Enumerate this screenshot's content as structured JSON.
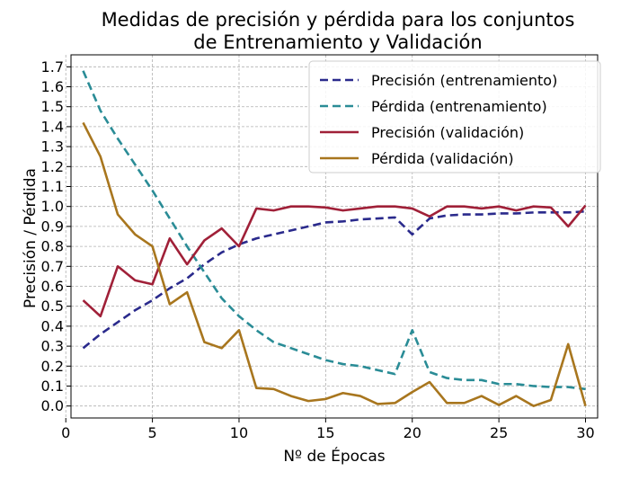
{
  "chart_data": {
    "type": "line",
    "title_lines": [
      "Medidas de precisión y pérdida para los conjuntos",
      "de Entrenamiento y Validación"
    ],
    "xlabel": "Nº de Épocas",
    "ylabel": "Precisión / Pérdida",
    "xlim": [
      0.3,
      30.7
    ],
    "ylim": [
      -0.06,
      1.76
    ],
    "xticks": [
      0,
      5,
      10,
      15,
      20,
      25,
      30
    ],
    "yticks": [
      0.0,
      0.1,
      0.2,
      0.3,
      0.4,
      0.5,
      0.6,
      0.7,
      0.8,
      0.9,
      1.0,
      1.1,
      1.2,
      1.3,
      1.4,
      1.5,
      1.6,
      1.7
    ],
    "grid": true,
    "legend_position": "top-right",
    "x": [
      1,
      2,
      3,
      4,
      5,
      6,
      7,
      8,
      9,
      10,
      11,
      12,
      13,
      14,
      15,
      16,
      17,
      18,
      19,
      20,
      21,
      22,
      23,
      24,
      25,
      26,
      27,
      28,
      29,
      30
    ],
    "series": [
      {
        "name": "Precisión (entrenamiento)",
        "color": "#2a2a8c",
        "style": "dashed",
        "values": [
          0.29,
          0.36,
          0.42,
          0.48,
          0.53,
          0.59,
          0.64,
          0.71,
          0.77,
          0.81,
          0.84,
          0.86,
          0.88,
          0.9,
          0.92,
          0.925,
          0.935,
          0.94,
          0.945,
          0.86,
          0.94,
          0.955,
          0.96,
          0.96,
          0.965,
          0.965,
          0.97,
          0.97,
          0.97,
          0.975
        ]
      },
      {
        "name": "Pérdida (entrenamiento)",
        "color": "#2a8c96",
        "style": "dashed",
        "values": [
          1.68,
          1.48,
          1.34,
          1.21,
          1.08,
          0.94,
          0.8,
          0.67,
          0.54,
          0.45,
          0.38,
          0.32,
          0.29,
          0.26,
          0.23,
          0.21,
          0.2,
          0.18,
          0.16,
          0.38,
          0.17,
          0.14,
          0.13,
          0.13,
          0.11,
          0.11,
          0.1,
          0.095,
          0.095,
          0.085
        ]
      },
      {
        "name": "Precisión (validación)",
        "color": "#a02038",
        "style": "solid",
        "values": [
          0.53,
          0.45,
          0.7,
          0.63,
          0.61,
          0.84,
          0.71,
          0.83,
          0.89,
          0.8,
          0.99,
          0.98,
          1.0,
          1.0,
          0.995,
          0.98,
          0.99,
          1.0,
          1.0,
          0.99,
          0.95,
          1.0,
          1.0,
          0.99,
          1.0,
          0.98,
          1.0,
          0.995,
          0.9,
          1.005
        ]
      },
      {
        "name": "Pérdida (validación)",
        "color": "#a8761e",
        "style": "solid",
        "values": [
          1.42,
          1.25,
          0.96,
          0.86,
          0.8,
          0.51,
          0.57,
          0.32,
          0.29,
          0.38,
          0.09,
          0.085,
          0.05,
          0.025,
          0.035,
          0.065,
          0.05,
          0.01,
          0.015,
          0.07,
          0.12,
          0.015,
          0.015,
          0.05,
          0.005,
          0.05,
          0.0,
          0.03,
          0.31,
          0.0
        ]
      }
    ]
  }
}
